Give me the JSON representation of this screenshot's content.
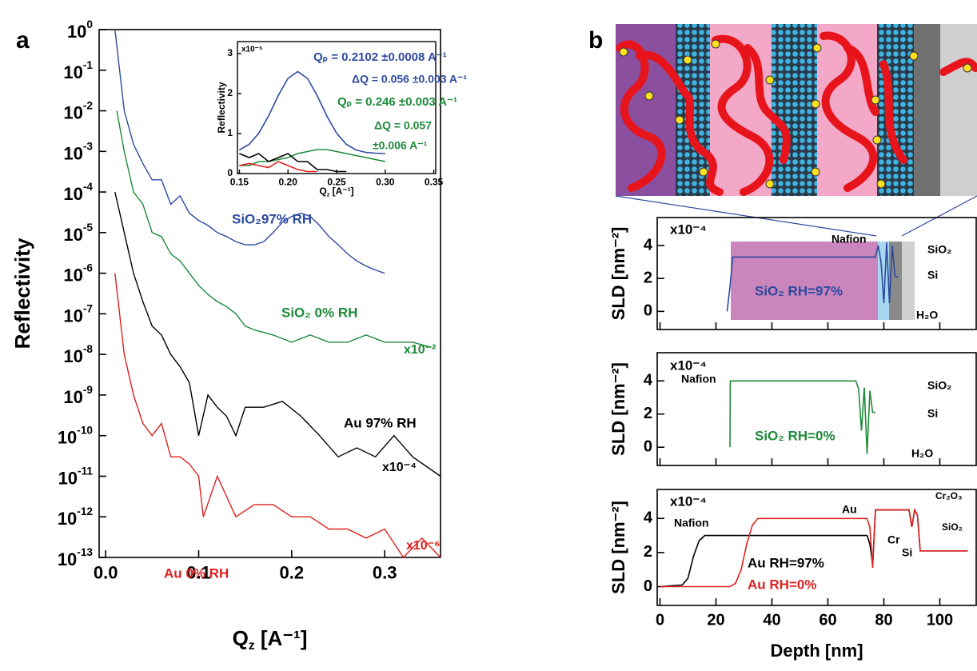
{
  "panel_labels": [
    "a",
    "b"
  ],
  "chart_data": [
    {
      "type": "line",
      "scale_y": "log",
      "y_label": "Reflectivity",
      "x_label": [
        "Q",
        "z",
        " [A⁻¹]"
      ],
      "xlim": [
        -0.007,
        0.36
      ],
      "ylim": [
        1e-13,
        1
      ],
      "xticks": [
        {
          "value": 0,
          "label": "0.0"
        },
        0.1,
        0.2,
        0.3
      ],
      "yticks": [
        {
          "value": 1,
          "label": "10",
          "sup": "0"
        },
        {
          "value": 0.1,
          "label": "10",
          "sup": "-1"
        },
        {
          "value": 0.01,
          "label": "10",
          "sup": "-2"
        },
        {
          "value": 0.001,
          "label": "10",
          "sup": "-3"
        },
        {
          "value": 0.0001,
          "label": "10",
          "sup": "-4"
        },
        {
          "value": 1e-05,
          "label": "10",
          "sup": "-5"
        },
        {
          "value": 1e-06,
          "label": "10",
          "sup": "-6"
        },
        {
          "value": 1e-07,
          "label": "10",
          "sup": "-7"
        },
        {
          "value": 1e-08,
          "label": "10",
          "sup": "-8"
        },
        {
          "value": 1e-09,
          "label": "10",
          "sup": "-9"
        },
        {
          "value": 1e-10,
          "label": "10",
          "sup": "-10"
        },
        {
          "value": 1e-11,
          "label": "10",
          "sup": "-11"
        },
        {
          "value": 1e-12,
          "label": "10",
          "sup": "-12"
        },
        {
          "value": 1e-13,
          "label": "10",
          "sup": "-13"
        }
      ],
      "series": [
        {
          "color": "#2e4a9e",
          "x": [
            0.01,
            0.02,
            0.03,
            0.04,
            0.05,
            0.06,
            0.07,
            0.08,
            0.09,
            0.1,
            0.11,
            0.12,
            0.13,
            0.14,
            0.15,
            0.16,
            0.17,
            0.18,
            0.19,
            0.2,
            0.21,
            0.22,
            0.23,
            0.24,
            0.25,
            0.26,
            0.27,
            0.28,
            0.29,
            0.3
          ],
          "values": [
            1,
            0.01,
            0.0015,
            0.0005,
            0.0002,
            0.0002,
            5e-05,
            8e-05,
            3e-05,
            2e-05,
            1.5e-05,
            1e-05,
            8e-06,
            6e-06,
            5e-06,
            5e-06,
            6e-06,
            1e-05,
            1.8e-05,
            2.5e-05,
            3e-05,
            2.5e-05,
            1.5e-05,
            8e-06,
            5e-06,
            3e-06,
            2e-06,
            1.5e-06,
            1.2e-06,
            1e-06
          ]
        },
        {
          "color": "#1e8a3a",
          "x": [
            0.012,
            0.02,
            0.03,
            0.04,
            0.05,
            0.06,
            0.07,
            0.08,
            0.09,
            0.1,
            0.11,
            0.12,
            0.13,
            0.14,
            0.15,
            0.16,
            0.18,
            0.2,
            0.22,
            0.24,
            0.26,
            0.28,
            0.3,
            0.33,
            0.35
          ],
          "values": [
            0.01,
            0.001,
            0.0001,
            5e-05,
            1e-05,
            8e-06,
            3e-06,
            2e-06,
            1e-06,
            5e-07,
            3e-07,
            2e-07,
            1.5e-07,
            1e-07,
            5e-08,
            4e-08,
            3e-08,
            2e-08,
            3e-08,
            2e-08,
            2e-08,
            3e-08,
            2e-08,
            2e-08,
            1.5e-08
          ]
        },
        {
          "color": "#000000",
          "x": [
            0.01,
            0.02,
            0.03,
            0.04,
            0.05,
            0.06,
            0.07,
            0.08,
            0.09,
            0.1,
            0.11,
            0.12,
            0.13,
            0.14,
            0.15,
            0.17,
            0.19,
            0.21,
            0.23,
            0.25,
            0.27,
            0.29,
            0.31,
            0.33,
            0.36
          ],
          "values": [
            0.0001,
            1e-05,
            1e-06,
            2e-07,
            5e-08,
            3e-08,
            1e-08,
            5e-09,
            2e-09,
            1e-10,
            1e-09,
            5e-10,
            3e-10,
            1e-10,
            5e-10,
            5e-10,
            7e-10,
            3e-10,
            1e-10,
            3e-11,
            5e-11,
            3e-11,
            1e-10,
            3e-11,
            1e-11
          ]
        },
        {
          "color": "#e02020",
          "x": [
            0.01,
            0.02,
            0.03,
            0.04,
            0.05,
            0.06,
            0.07,
            0.08,
            0.09,
            0.1,
            0.105,
            0.12,
            0.14,
            0.16,
            0.18,
            0.2,
            0.22,
            0.24,
            0.26,
            0.28,
            0.3,
            0.32,
            0.34,
            0.36
          ],
          "values": [
            1e-06,
            1e-08,
            1e-09,
            2e-10,
            1e-10,
            2e-10,
            3e-11,
            3e-11,
            2e-11,
            1e-11,
            1e-12,
            1e-11,
            1e-12,
            2e-12,
            2e-12,
            1e-12,
            1e-12,
            5e-13,
            5e-13,
            3e-13,
            5e-13,
            1e-13,
            3e-13,
            1e-13
          ]
        }
      ],
      "annotations": [
        {
          "text": "SiO₂97% RH",
          "color": "#2e4a9e"
        },
        {
          "text": "SiO₂ 0% RH",
          "color": "#1e8a3a"
        },
        {
          "text": "x10⁻²",
          "color": "#1e8a3a"
        },
        {
          "text": "Au 97% RH",
          "color": "#000000"
        },
        {
          "text": "x10⁻⁴",
          "color": "#000000"
        },
        {
          "text": "x10⁻⁶",
          "color": "#e02020"
        },
        {
          "text": "Au 0% RH",
          "color": "#e02020"
        }
      ]
    },
    {
      "type": "line",
      "y_label": "Reflectivity",
      "x_label": [
        "Q",
        "z",
        " [A⁻¹]"
      ],
      "xlim": [
        0.148,
        0.352
      ],
      "ylim": [
        0,
        3.3
      ],
      "xticks": [
        0.15,
        {
          "value": 0.2,
          "label": "0.20"
        },
        0.25,
        {
          "value": 0.3,
          "label": "0.30"
        },
        0.35
      ],
      "yticks": [
        0,
        1,
        2,
        3
      ],
      "series": [
        {
          "color": "#2e4a9e",
          "x": [
            0.15,
            0.16,
            0.17,
            0.18,
            0.19,
            0.2,
            0.21,
            0.22,
            0.23,
            0.24,
            0.25,
            0.26,
            0.27,
            0.28,
            0.29,
            0.3
          ],
          "values": [
            0.59,
            0.73,
            1.01,
            1.44,
            1.95,
            2.38,
            2.55,
            2.38,
            1.95,
            1.44,
            1.01,
            0.73,
            0.59,
            0.53,
            0.51,
            0.5
          ]
        },
        {
          "color": "#1e8a3a",
          "x": [
            0.15,
            0.16,
            0.17,
            0.18,
            0.19,
            0.2,
            0.21,
            0.22,
            0.23,
            0.24,
            0.25,
            0.26,
            0.27,
            0.28,
            0.29,
            0.3
          ],
          "values": [
            0.2,
            0.2,
            0.3,
            0.3,
            0.35,
            0.4,
            0.5,
            0.55,
            0.6,
            0.6,
            0.55,
            0.5,
            0.45,
            0.4,
            0.35,
            0.3
          ]
        },
        {
          "color": "#000000",
          "x": [
            0.15,
            0.16,
            0.17,
            0.18,
            0.19,
            0.2,
            0.21,
            0.22,
            0.23,
            0.24,
            0.25,
            0.26
          ],
          "values": [
            0.5,
            0.4,
            0.5,
            0.3,
            0.4,
            0.5,
            0.3,
            0.3,
            0.1,
            0.1,
            0.05,
            0.05
          ]
        },
        {
          "color": "#e02020",
          "x": [
            0.15,
            0.16,
            0.17,
            0.18,
            0.19,
            0.2,
            0.21,
            0.22,
            0.23
          ],
          "values": [
            0.2,
            0.25,
            0.2,
            0.15,
            0.3,
            0.2,
            0.1,
            0.05,
            0.05
          ]
        }
      ],
      "annotations": [
        {
          "text": "x10⁻⁵",
          "color": "#000000"
        },
        {
          "text": "Qₚ = 0.2102 ±0.0008 A⁻¹",
          "color": "#2e4a9e"
        },
        {
          "text": "ΔQ = 0.056 ±0.003 A⁻¹",
          "color": "#2e4a9e"
        },
        {
          "text": "Qₚ = 0.246 ±0.003 A⁻¹",
          "color": "#1e8a3a"
        },
        {
          "text": "ΔQ = 0.057",
          "color": "#1e8a3a"
        },
        {
          "text": "±0.006 A⁻¹",
          "color": "#1e8a3a"
        }
      ]
    },
    {
      "type": "line",
      "y_label": "SLD [nm⁻²]",
      "show_xtick_labels": false,
      "xlim": [
        -1,
        113
      ],
      "ylim": [
        -1.1,
        5.7
      ],
      "xticks": [
        0,
        20,
        40,
        60,
        80,
        100
      ],
      "yticks": [
        0,
        2,
        4
      ],
      "series": [
        {
          "color": "#2e4a9e",
          "x": [
            24,
            25,
            26,
            30,
            50,
            70,
            77,
            78,
            79,
            80,
            81,
            82,
            83,
            84,
            85
          ],
          "values": [
            0,
            1.5,
            3.3,
            3.3,
            3.3,
            3.3,
            3.3,
            4,
            3,
            0.5,
            4.2,
            0.5,
            4,
            2.1,
            2.1
          ]
        }
      ],
      "annotations": [
        {
          "text": "x10⁻⁴",
          "color": "#000000"
        },
        {
          "text": "Nafion",
          "color": "#000000"
        },
        {
          "text": "SiO₂",
          "color": "#000000"
        },
        {
          "text": "Si",
          "color": "#000000"
        },
        {
          "text": "H₂O",
          "color": "#000000"
        },
        {
          "text": "SiO₂ RH=97%",
          "color": "#2e4a9e"
        }
      ]
    },
    {
      "type": "line",
      "y_label": "SLD [nm⁻²]",
      "show_xtick_labels": false,
      "xlim": [
        -1,
        113
      ],
      "ylim": [
        -1.1,
        5.7
      ],
      "xticks": [
        0,
        20,
        40,
        60,
        80,
        100
      ],
      "yticks": [
        0,
        2,
        4
      ],
      "series": [
        {
          "color": "#1e8a3a",
          "x": [
            25,
            25.1,
            30,
            50,
            70,
            71,
            72,
            73,
            74,
            75,
            76,
            77
          ],
          "values": [
            0,
            4,
            4,
            4,
            4,
            3.5,
            1,
            3.6,
            -0.4,
            3.4,
            2.1,
            2.1
          ]
        }
      ],
      "annotations": [
        {
          "text": "x10⁻⁴",
          "color": "#000000"
        },
        {
          "text": "Nafion",
          "color": "#000000"
        },
        {
          "text": "SiO₂",
          "color": "#000000"
        },
        {
          "text": "Si",
          "color": "#000000"
        },
        {
          "text": "H₂O",
          "color": "#000000"
        },
        {
          "text": "SiO₂ RH=0%",
          "color": "#1e8a3a"
        }
      ]
    },
    {
      "type": "line",
      "y_label": "SLD [nm⁻²]",
      "x_label": "Depth [nm]",
      "show_xtick_labels": true,
      "xlim": [
        -1,
        113
      ],
      "ylim": [
        -1.1,
        5.7
      ],
      "xticks": [
        0,
        20,
        40,
        60,
        80,
        100
      ],
      "yticks": [
        0,
        2,
        4
      ],
      "series": [
        {
          "color": "#000000",
          "x": [
            0,
            8,
            10,
            12,
            14,
            16,
            20,
            40,
            60,
            74,
            75,
            76,
            77,
            80,
            89,
            90,
            91,
            92,
            93,
            95,
            100,
            110
          ],
          "values": [
            0,
            0.1,
            0.5,
            1.8,
            2.7,
            3,
            3,
            3,
            3,
            3,
            2.5,
            1.3,
            4.5,
            4.5,
            4.5,
            3.5,
            4.5,
            4.2,
            2.1,
            2.1,
            2.1,
            2.1
          ]
        },
        {
          "color": "#e02020",
          "x": [
            0,
            25,
            27,
            29,
            31,
            33,
            35,
            40,
            60,
            74,
            75,
            76,
            77,
            80,
            89,
            90,
            91,
            92,
            93,
            95,
            100,
            110
          ],
          "values": [
            0,
            0,
            0.2,
            1,
            2.5,
            3.6,
            4,
            4,
            4,
            4,
            3.5,
            1.1,
            4.5,
            4.5,
            4.5,
            3.5,
            4.5,
            4.2,
            2.1,
            2.1,
            2.1,
            2.1
          ]
        }
      ],
      "annotations": [
        {
          "text": "x10⁻⁴",
          "color": "#000000"
        },
        {
          "text": "Nafion",
          "color": "#000000"
        },
        {
          "text": "Au",
          "color": "#000000"
        },
        {
          "text": "Cr₂O₃",
          "color": "#000000"
        },
        {
          "text": "SiO₂",
          "color": "#000000"
        },
        {
          "text": "Cr",
          "color": "#000000"
        },
        {
          "text": "Si",
          "color": "#000000"
        },
        {
          "text": "Au  RH=97%",
          "color": "#000000"
        },
        {
          "text": "Au  RH=0%",
          "color": "#e02020"
        }
      ]
    }
  ]
}
